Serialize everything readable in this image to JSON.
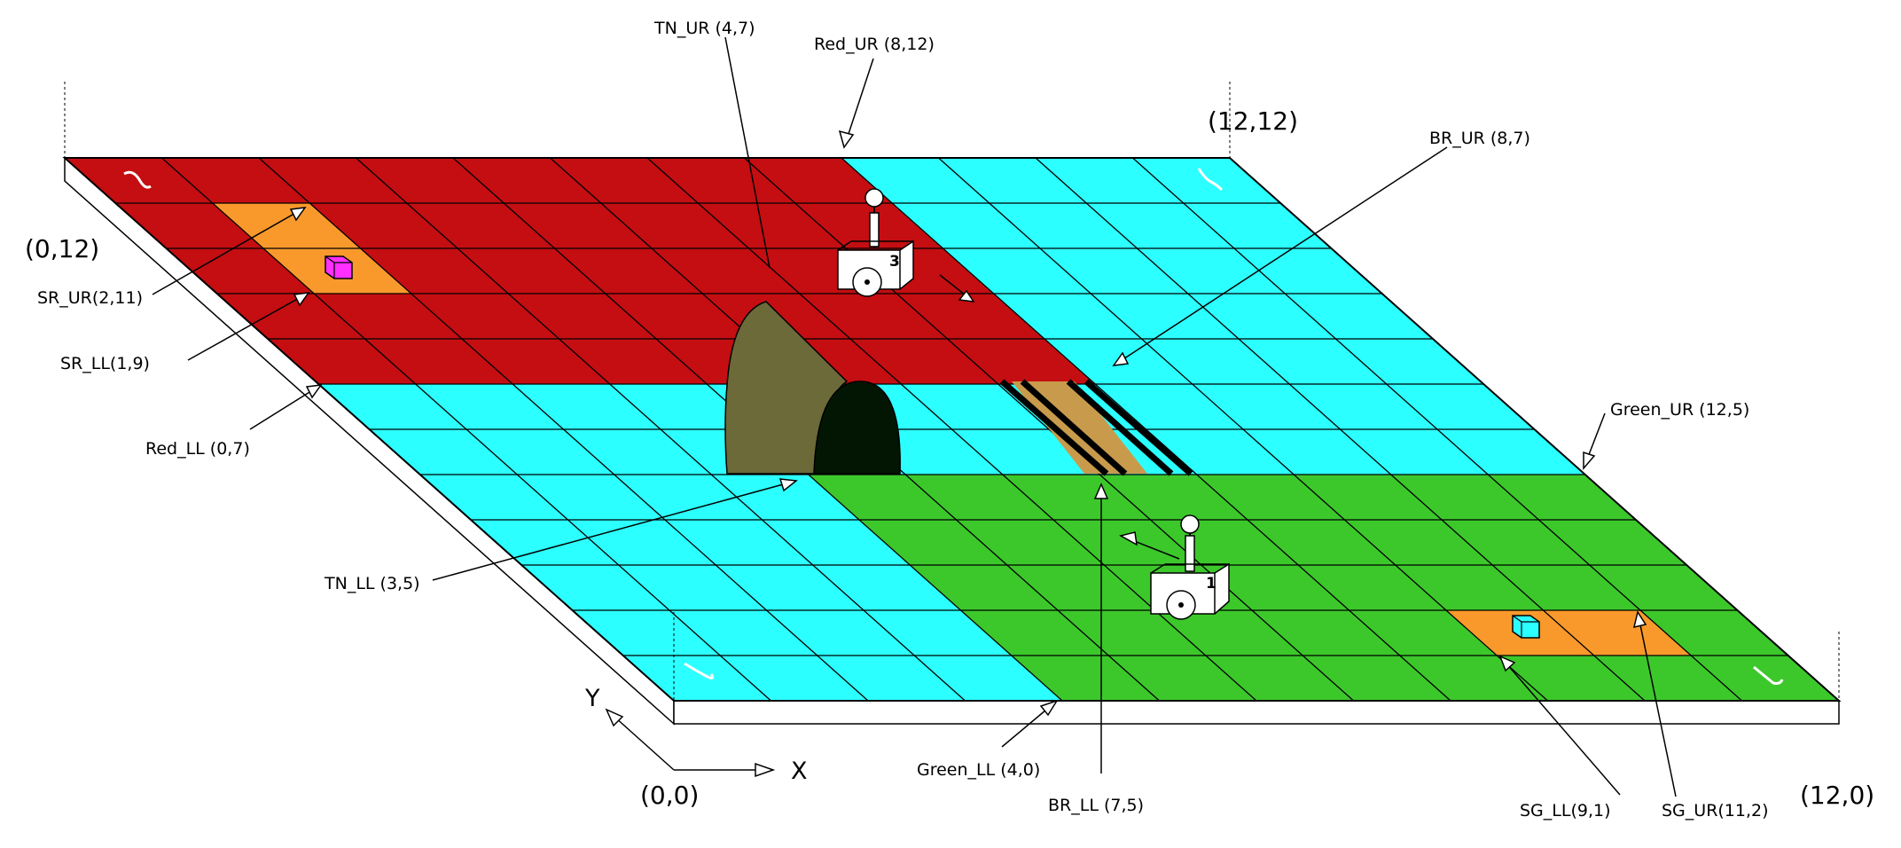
{
  "grid": {
    "size": 12
  },
  "colors": {
    "red": "#c40e12",
    "cyan": "#2cffff",
    "green": "#3cc82b",
    "orange": "#f9992c",
    "tunnel_body": "#6b6a38",
    "tunnel_mouth": "#031603",
    "bridge": "#c89b4c",
    "magenta": "#ff2fff"
  },
  "regions": [
    {
      "name": "red-region",
      "color": "red",
      "x0": 0,
      "y0": 7,
      "x1": 8,
      "y1": 12
    },
    {
      "name": "green-region",
      "color": "green",
      "x0": 4,
      "y0": 0,
      "x1": 12,
      "y1": 5
    },
    {
      "name": "start-red-region",
      "color": "orange",
      "x0": 1,
      "y0": 9,
      "x1": 2,
      "y1": 11
    },
    {
      "name": "start-green-region",
      "color": "orange",
      "x0": 9,
      "y0": 1,
      "x1": 11,
      "y1": 2
    }
  ],
  "corners": [
    {
      "name": "corner-origin-label",
      "text": "(0,0)"
    },
    {
      "name": "corner-x-max-label",
      "text": "(12,0)"
    },
    {
      "name": "corner-y-max-label",
      "text": "(0,12)"
    },
    {
      "name": "corner-xy-max-label",
      "text": "(12,12)"
    }
  ],
  "axes": {
    "x_label": "X",
    "y_label": "Y"
  },
  "annotations": [
    {
      "name": "label-tn-ur",
      "text": "TN_UR (4,7)"
    },
    {
      "name": "label-red-ur",
      "text": "Red_UR (8,12)"
    },
    {
      "name": "label-br-ur",
      "text": "BR_UR (8,7)"
    },
    {
      "name": "label-sr-ur",
      "text": "SR_UR(2,11)"
    },
    {
      "name": "label-sr-ll",
      "text": "SR_LL(1,9)"
    },
    {
      "name": "label-red-ll",
      "text": "Red_LL (0,7)"
    },
    {
      "name": "label-green-ur",
      "text": "Green_UR (12,5)"
    },
    {
      "name": "label-tn-ll",
      "text": "TN_LL (3,5)"
    },
    {
      "name": "label-green-ll",
      "text": "Green_LL (4,0)"
    },
    {
      "name": "label-br-ll",
      "text": "BR_LL (7,5)"
    },
    {
      "name": "label-sg-ll",
      "text": "SG_LL(9,1)"
    },
    {
      "name": "label-sg-ur",
      "text": "SG_UR(11,2)"
    }
  ],
  "robots": [
    {
      "name": "robot-3",
      "number": "3"
    },
    {
      "name": "robot-1",
      "number": "1"
    }
  ]
}
